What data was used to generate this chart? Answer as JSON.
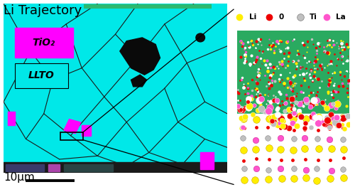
{
  "title": "Li Trajectory",
  "title_color": "#000000",
  "title_fontsize": 13,
  "green_line_color": "#2db870",
  "main_bg_color": "#00e8e8",
  "tio2_label": "TiO₂",
  "tio2_box_color": "#ff00ff",
  "llto_label": "LLTO",
  "llto_box_color": "#00e8e8",
  "scalebar_label": "10μm",
  "legend_labels": [
    "Li",
    "0",
    "Ti",
    "La"
  ],
  "legend_colors": [
    "#ffee00",
    "#ee0000",
    "#c0c0c0",
    "#ff55cc"
  ],
  "atom_green": "#2aaa60",
  "grain_color": "#1a1a1a",
  "blob_color": "#0a0a0a",
  "bottom_strip_color": "#2a2a2a",
  "right_panel_border": "#aaaaaa"
}
